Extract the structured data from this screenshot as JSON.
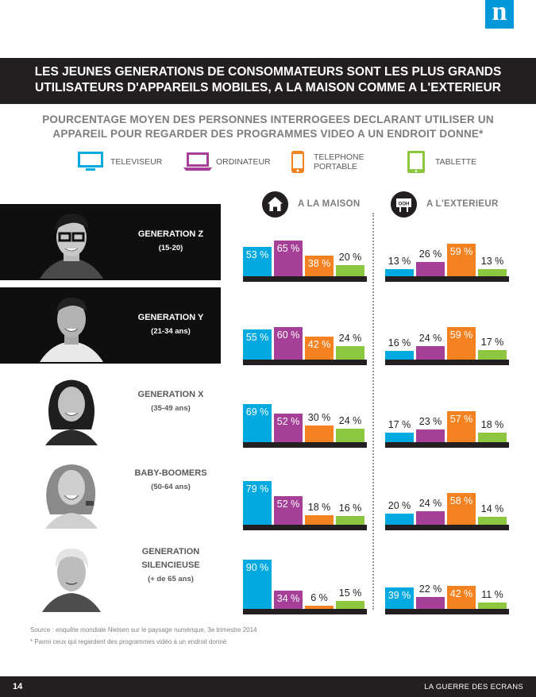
{
  "brand": {
    "logo_letter": "n",
    "logo_color": "#0098d8"
  },
  "headline": {
    "line1": "LES JEUNES GENERATIONS DE CONSOMMATEURS SONT LES PLUS GRANDS",
    "line2": "UTILISATEURS D'APPAREILS MOBILES, A LA MAISON COMME A L'EXTERIEUR"
  },
  "subtitle": {
    "line1": "POURCENTAGE MOYEN DES PERSONNES INTERROGEES DECLARANT UTILISER UN",
    "line2": "APPAREIL POUR REGARDER DES PROGRAMMES VIDEO A UN ENDROIT DONNE*"
  },
  "legend": [
    {
      "label_line1": "TELEVISEUR",
      "label_line2": "",
      "icon": "tv-icon",
      "color": "#00a9e0"
    },
    {
      "label_line1": "ORDINATEUR",
      "label_line2": "",
      "icon": "laptop-icon",
      "color": "#a53f97"
    },
    {
      "label_line1": "TELEPHONE",
      "label_line2": "PORTABLE",
      "icon": "phone-icon",
      "color": "#f58220"
    },
    {
      "label_line1": "TABLETTE",
      "label_line2": "",
      "icon": "tablet-icon",
      "color": "#8dc63f"
    }
  ],
  "columns": {
    "home": {
      "label": "A LA MAISON",
      "icon": "house-icon"
    },
    "outside": {
      "label": "A L'EXTERIEUR",
      "icon": "ooh-sign-icon",
      "sign_text": "OOH"
    }
  },
  "generations": [
    {
      "name": "GENERATION Z",
      "name2": "",
      "age": "(15-20)",
      "style": "dark"
    },
    {
      "name": "GENERATION Y",
      "name2": "",
      "age": "(21-34 ans)",
      "style": "dark"
    },
    {
      "name": "GENERATION X",
      "name2": "",
      "age": "(35-49 ans)",
      "style": "light"
    },
    {
      "name": "BABY-BOOMERS",
      "name2": "",
      "age": "(50-64 ans)",
      "style": "light"
    },
    {
      "name": "GENERATION",
      "name2": "SILENCIEUSE",
      "age": "(+ de 65 ans)",
      "style": "light"
    }
  ],
  "chart_data": {
    "type": "bar",
    "unit": "%",
    "categories": [
      "TELEVISEUR",
      "ORDINATEUR",
      "TELEPHONE PORTABLE",
      "TABLETTE"
    ],
    "colors": [
      "#00a9e0",
      "#a53f97",
      "#f58220",
      "#8dc63f"
    ],
    "ylim": [
      0,
      100
    ],
    "groups": [
      "GENERATION Z",
      "GENERATION Y",
      "GENERATION X",
      "BABY-BOOMERS",
      "GENERATION SILENCIEUSE"
    ],
    "home": [
      [
        53,
        65,
        38,
        20
      ],
      [
        55,
        60,
        42,
        24
      ],
      [
        69,
        52,
        30,
        24
      ],
      [
        79,
        52,
        18,
        16
      ],
      [
        90,
        34,
        6,
        15
      ]
    ],
    "outside": [
      [
        13,
        26,
        59,
        13
      ],
      [
        16,
        24,
        59,
        17
      ],
      [
        17,
        23,
        57,
        18
      ],
      [
        20,
        24,
        58,
        14
      ],
      [
        39,
        22,
        42,
        11
      ]
    ],
    "labels_home": [
      [
        "53 %",
        "65 %",
        "38 %",
        "20 %"
      ],
      [
        "55 %",
        "60 %",
        "42 %",
        "24 %"
      ],
      [
        "69 %",
        "52 %",
        "30 %",
        "24 %"
      ],
      [
        "79 %",
        "52 %",
        "18 %",
        "16 %"
      ],
      [
        "90 %",
        "34 %",
        "6 %",
        "15 %"
      ]
    ],
    "labels_outside": [
      [
        "13 %",
        "26 %",
        "59 %",
        "13 %"
      ],
      [
        "16 %",
        "24 %",
        "59 %",
        "17 %"
      ],
      [
        "17 %",
        "23 %",
        "57 %",
        "18 %"
      ],
      [
        "20 %",
        "24 %",
        "58 %",
        "14 %"
      ],
      [
        "39 %",
        "22 %",
        "42 %",
        "11 %"
      ]
    ]
  },
  "footnotes": {
    "source": "Source : enquête mondiale Nielsen sur le paysage numérique, 3e trimestre 2014",
    "note": "* Parmi ceux qui regardent des programmes vidéo à un endroit donné"
  },
  "footer": {
    "page": "14",
    "title": "LA GUERRE DES ECRANS"
  }
}
